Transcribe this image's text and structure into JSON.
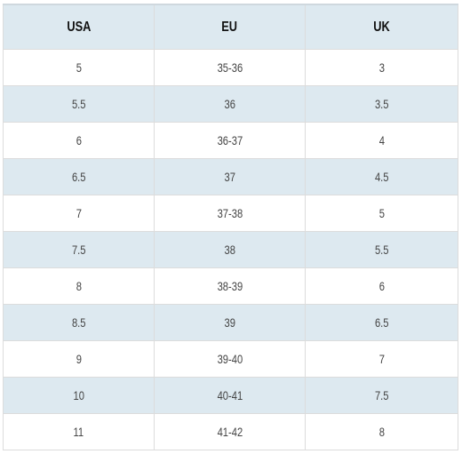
{
  "table": {
    "headers": [
      "USA",
      "EU",
      "UK"
    ],
    "rows": [
      [
        "5",
        "35-36",
        "3"
      ],
      [
        "5.5",
        "36",
        "3.5"
      ],
      [
        "6",
        "36-37",
        "4"
      ],
      [
        "6.5",
        "37",
        "4.5"
      ],
      [
        "7",
        "37-38",
        "5"
      ],
      [
        "7.5",
        "38",
        "5.5"
      ],
      [
        "8",
        "38-39",
        "6"
      ],
      [
        "8.5",
        "39",
        "6.5"
      ],
      [
        "9",
        "39-40",
        "7"
      ],
      [
        "10",
        "40-41",
        "7.5"
      ],
      [
        "11",
        "41-42",
        "8"
      ]
    ],
    "colors": {
      "stripe": "#dde9f0",
      "border": "#dcdcdc",
      "header_text": "#111111",
      "cell_text": "#444444"
    }
  }
}
